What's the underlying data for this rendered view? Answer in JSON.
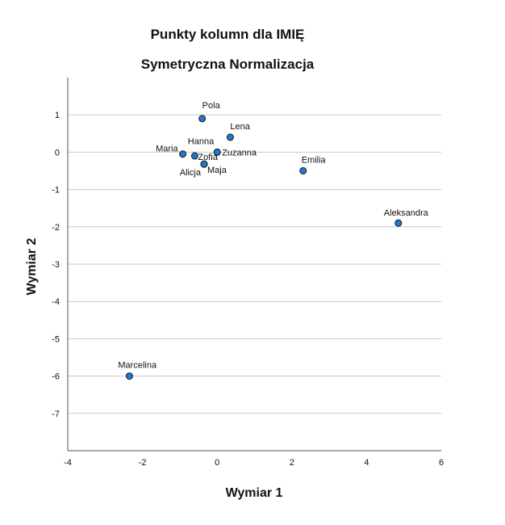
{
  "chart_data": {
    "type": "scatter",
    "title": "Punkty kolumn dla IMIĘ",
    "subtitle": "Symetryczna Normalizacja",
    "xlabel": "Wymiar 1",
    "ylabel": "Wymiar 2",
    "xlim": [
      -4,
      6
    ],
    "ylim": [
      -8,
      2
    ],
    "xticks": [
      -4,
      -2,
      0,
      2,
      4,
      6
    ],
    "yticks": [
      1,
      0,
      -1,
      -2,
      -3,
      -4,
      -5,
      -6,
      -7
    ],
    "grid": "horizontal",
    "marker_color": "#1f77d0",
    "marker_edge_color": "#1a1a1a",
    "points": [
      {
        "label": "Pola",
        "x": -0.4,
        "y": 0.9
      },
      {
        "label": "Lena",
        "x": 0.35,
        "y": 0.4
      },
      {
        "label": "Hanna",
        "x": 0.0,
        "y": 0.0
      },
      {
        "label": "Maria",
        "x": -0.92,
        "y": -0.05
      },
      {
        "label": "Zofia",
        "x": -0.6,
        "y": -0.1
      },
      {
        "label": "Zuzanna",
        "x": 0.0,
        "y": 0.0
      },
      {
        "label": "Alicja",
        "x": -0.35,
        "y": -0.32
      },
      {
        "label": "Maja",
        "x": -0.35,
        "y": -0.32
      },
      {
        "label": "Emilia",
        "x": 2.3,
        "y": -0.5
      },
      {
        "label": "Aleksandra",
        "x": 4.85,
        "y": -1.9
      },
      {
        "label": "Marcelina",
        "x": -2.35,
        "y": -6.0
      }
    ]
  }
}
